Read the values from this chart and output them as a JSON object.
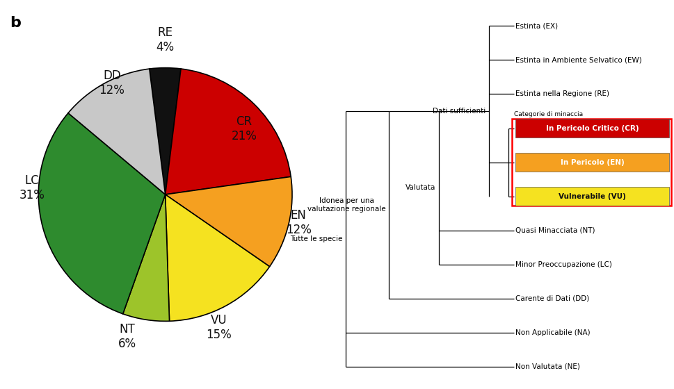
{
  "pie_labels": [
    "RE",
    "CR",
    "EN",
    "VU",
    "NT",
    "LC",
    "DD"
  ],
  "pie_values": [
    4,
    21,
    12,
    15,
    6,
    31,
    12
  ],
  "pie_colors": [
    "#111111",
    "#cc0000",
    "#f5a020",
    "#f5e220",
    "#9dc42a",
    "#2e8b2e",
    "#c8c8c8"
  ],
  "panel_label": "b",
  "highlight_colors": {
    "In Pericolo Critico (CR)": "#cc0000",
    "In Pericolo (EN)": "#f5a020",
    "Vulnerabile (VU)": "#f5e220"
  },
  "highlight_text_colors": {
    "In Pericolo Critico (CR)": "#ffffff",
    "In Pericolo (EN)": "#ffffff",
    "Vulnerabile (VU)": "#111111"
  },
  "categorie_label": "Categorie di minaccia",
  "node_labels": {
    "tutte": "Tutte le specie",
    "idonea": "Idonea per una\nvalutazione regionale",
    "valutata": "Valutata",
    "dati": "Dati sufficienti"
  },
  "background_color": "#ffffff"
}
